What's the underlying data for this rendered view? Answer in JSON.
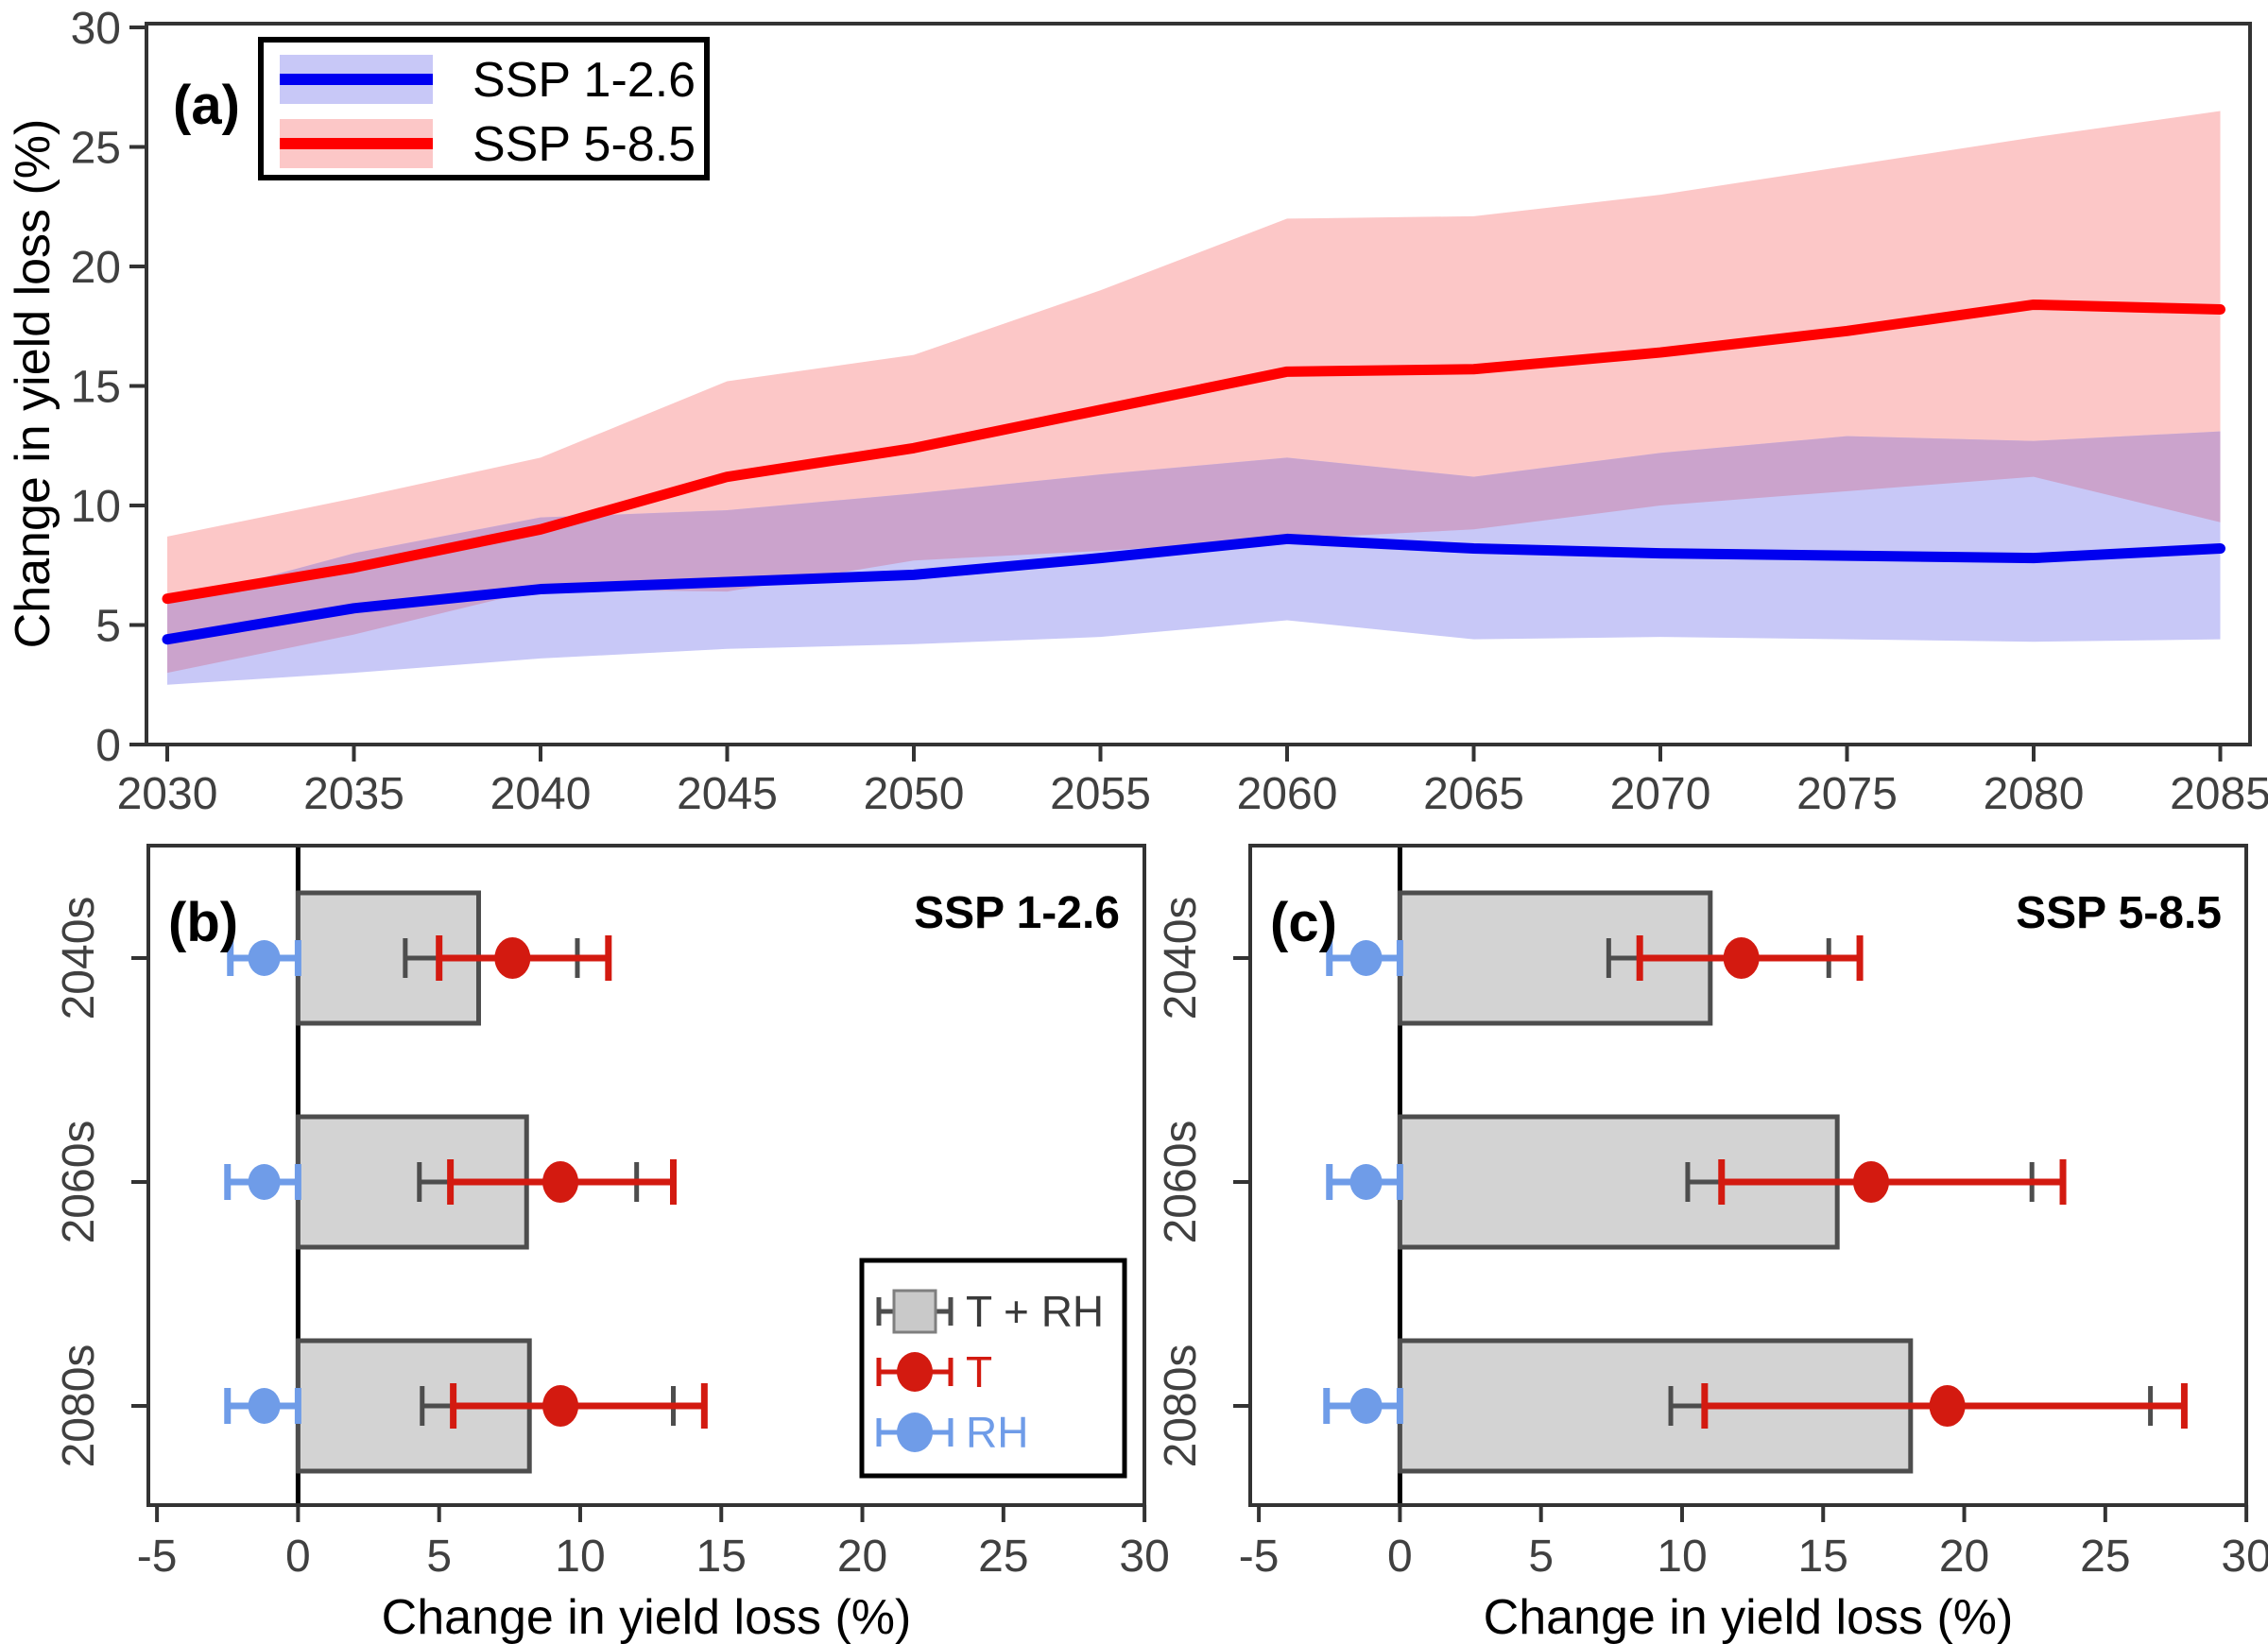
{
  "figure": {
    "background": "#FFFFFF",
    "axis_text_color": "#404040",
    "axis_line_color": "#333333"
  },
  "chart_data": [
    {
      "id": "panel-a",
      "type": "line",
      "panel_label": "(a)",
      "ylabel": "Change in yield loss (%)",
      "xlabel": "",
      "x": [
        2030,
        2035,
        2040,
        2045,
        2050,
        2055,
        2060,
        2065,
        2070,
        2075,
        2080,
        2085
      ],
      "ylim": [
        0,
        30
      ],
      "yticks": [
        0,
        5,
        10,
        15,
        20,
        25,
        30
      ],
      "grid": false,
      "legend_position": "top-left",
      "overlap_band_color": "#CBA3CC",
      "series": [
        {
          "name": "SSP 1-2.6",
          "line_color": "#0000F0",
          "band_color": "#C8C8F7",
          "values": [
            4.4,
            5.7,
            6.5,
            6.8,
            7.1,
            7.8,
            8.6,
            8.2,
            8.0,
            7.9,
            7.8,
            8.2
          ],
          "band_upper": [
            5.9,
            8.0,
            9.5,
            9.8,
            10.5,
            11.3,
            12.0,
            11.2,
            12.2,
            12.9,
            12.7,
            13.1
          ],
          "band_lower": [
            2.5,
            3.0,
            3.6,
            4.0,
            4.2,
            4.5,
            5.2,
            4.4,
            4.5,
            4.4,
            4.3,
            4.4
          ]
        },
        {
          "name": "SSP 5-8.5",
          "line_color": "#FF0000",
          "band_color": "#FCC7C7",
          "values": [
            6.1,
            7.4,
            9.0,
            11.2,
            12.4,
            14.0,
            15.6,
            15.7,
            16.4,
            17.3,
            18.4,
            18.2
          ],
          "band_upper": [
            8.7,
            10.3,
            12.0,
            15.2,
            16.3,
            19.0,
            22.0,
            22.1,
            23.0,
            24.2,
            25.4,
            26.5
          ],
          "band_lower": [
            3.0,
            4.6,
            6.5,
            6.4,
            7.7,
            8.1,
            8.6,
            9.0,
            10.0,
            10.6,
            11.2,
            9.3
          ]
        }
      ]
    },
    {
      "id": "panel-b",
      "type": "bar",
      "orientation": "horizontal",
      "panel_label": "(b)",
      "title": "SSP 1-2.6",
      "xlabel": "Change in yield loss (%)",
      "xlim": [
        -5,
        30
      ],
      "xticks": [
        -5,
        0,
        5,
        10,
        15,
        20,
        25,
        30
      ],
      "categories": [
        "2040s",
        "2060s",
        "2080s"
      ],
      "bar": {
        "name": "T + RH",
        "fill": "#D3D3D3",
        "stroke": "#4D4D4D",
        "ci_color": "#4D4D4D",
        "values": [
          6.4,
          8.1,
          8.2
        ],
        "ci_low": [
          3.8,
          4.3,
          4.4
        ],
        "ci_high": [
          9.9,
          12.0,
          13.3
        ]
      },
      "points": [
        {
          "name": "T",
          "color": "#D31A10",
          "values": [
            7.6,
            9.3,
            9.3
          ],
          "ci_low": [
            5.0,
            5.4,
            5.5
          ],
          "ci_high": [
            11.0,
            13.3,
            14.4
          ]
        },
        {
          "name": "RH",
          "color": "#6F9CE8",
          "values": [
            -1.2,
            -1.2,
            -1.2
          ],
          "ci_low": [
            -2.4,
            -2.5,
            -2.5
          ],
          "ci_high": [
            0.0,
            0.0,
            0.0
          ]
        }
      ],
      "legend": {
        "visible": true,
        "items": [
          {
            "label": "T + RH",
            "color": "#3A3A3A"
          },
          {
            "label": "T",
            "color": "#D31A10"
          },
          {
            "label": "RH",
            "color": "#6F9CE8"
          }
        ]
      }
    },
    {
      "id": "panel-c",
      "type": "bar",
      "orientation": "horizontal",
      "panel_label": "(c)",
      "title": "SSP 5-8.5",
      "xlabel": "Change in yield loss (%)",
      "xlim": [
        -5,
        30
      ],
      "xticks": [
        -5,
        0,
        5,
        10,
        15,
        20,
        25,
        30
      ],
      "categories": [
        "2040s",
        "2060s",
        "2080s"
      ],
      "bar": {
        "name": "T + RH",
        "fill": "#D3D3D3",
        "stroke": "#4D4D4D",
        "ci_color": "#4D4D4D",
        "values": [
          11.0,
          15.5,
          18.1
        ],
        "ci_low": [
          7.4,
          10.2,
          9.6
        ],
        "ci_high": [
          15.2,
          22.4,
          26.6
        ]
      },
      "points": [
        {
          "name": "T",
          "color": "#D31A10",
          "values": [
            12.1,
            16.7,
            19.4
          ],
          "ci_low": [
            8.5,
            11.4,
            10.8
          ],
          "ci_high": [
            16.3,
            23.5,
            27.8
          ]
        },
        {
          "name": "RH",
          "color": "#6F9CE8",
          "values": [
            -1.2,
            -1.2,
            -1.2
          ],
          "ci_low": [
            -2.5,
            -2.5,
            -2.6
          ],
          "ci_high": [
            0.0,
            0.0,
            0.0
          ]
        }
      ],
      "legend": {
        "visible": false,
        "items": [
          {
            "label": "T + RH",
            "color": "#3A3A3A"
          },
          {
            "label": "T",
            "color": "#D31A10"
          },
          {
            "label": "RH",
            "color": "#6F9CE8"
          }
        ]
      }
    }
  ]
}
